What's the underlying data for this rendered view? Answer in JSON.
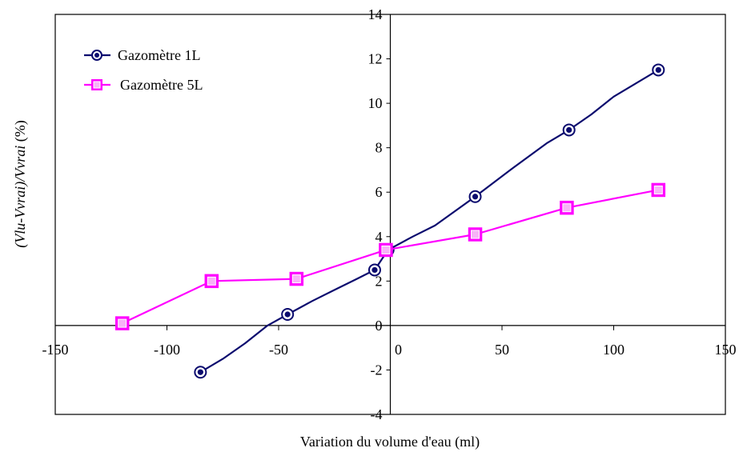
{
  "chart_data": {
    "type": "line",
    "title": "",
    "xlabel": "Variation du volume d'eau (ml)",
    "ylabel_italic": "(Vlu-Vvrai)/Vvrai",
    "ylabel_unit": " (%)",
    "xlim": [
      -150,
      150
    ],
    "ylim": [
      -4,
      14
    ],
    "x_ticks": [
      -150,
      -100,
      -50,
      0,
      50,
      100,
      150
    ],
    "y_ticks": [
      -4,
      -2,
      0,
      2,
      4,
      6,
      8,
      10,
      12,
      14
    ],
    "grid": false,
    "legend_position": "top-left",
    "series": [
      {
        "name": "Gazomètre 1L",
        "color": "#0a0a6e",
        "marker": "circle",
        "x": [
          -85,
          -46,
          -7,
          -1,
          38,
          80,
          120
        ],
        "y": [
          -2.1,
          0.5,
          2.5,
          3.4,
          5.8,
          8.8,
          11.5
        ],
        "line_x": [
          -85,
          -75,
          -65,
          -55,
          -46,
          -35,
          -25,
          -15,
          -7,
          -1,
          10,
          20,
          38,
          55,
          70,
          80,
          90,
          100,
          120
        ],
        "line_y": [
          -2.1,
          -1.5,
          -0.8,
          0.0,
          0.5,
          1.1,
          1.6,
          2.1,
          2.5,
          3.4,
          4.0,
          4.5,
          5.8,
          7.1,
          8.2,
          8.8,
          9.5,
          10.3,
          11.5
        ]
      },
      {
        "name": "Gazomètre 5L",
        "color": "#ff00ff",
        "marker": "square",
        "x": [
          -120,
          -80,
          -42,
          -2,
          38,
          79,
          120
        ],
        "y": [
          0.1,
          2.0,
          2.1,
          3.4,
          4.1,
          5.3,
          6.1
        ],
        "line_x": [
          -120,
          -80,
          -42,
          -2,
          38,
          79,
          120
        ],
        "line_y": [
          0.1,
          2.0,
          2.1,
          3.4,
          4.1,
          5.3,
          6.1
        ]
      }
    ]
  }
}
